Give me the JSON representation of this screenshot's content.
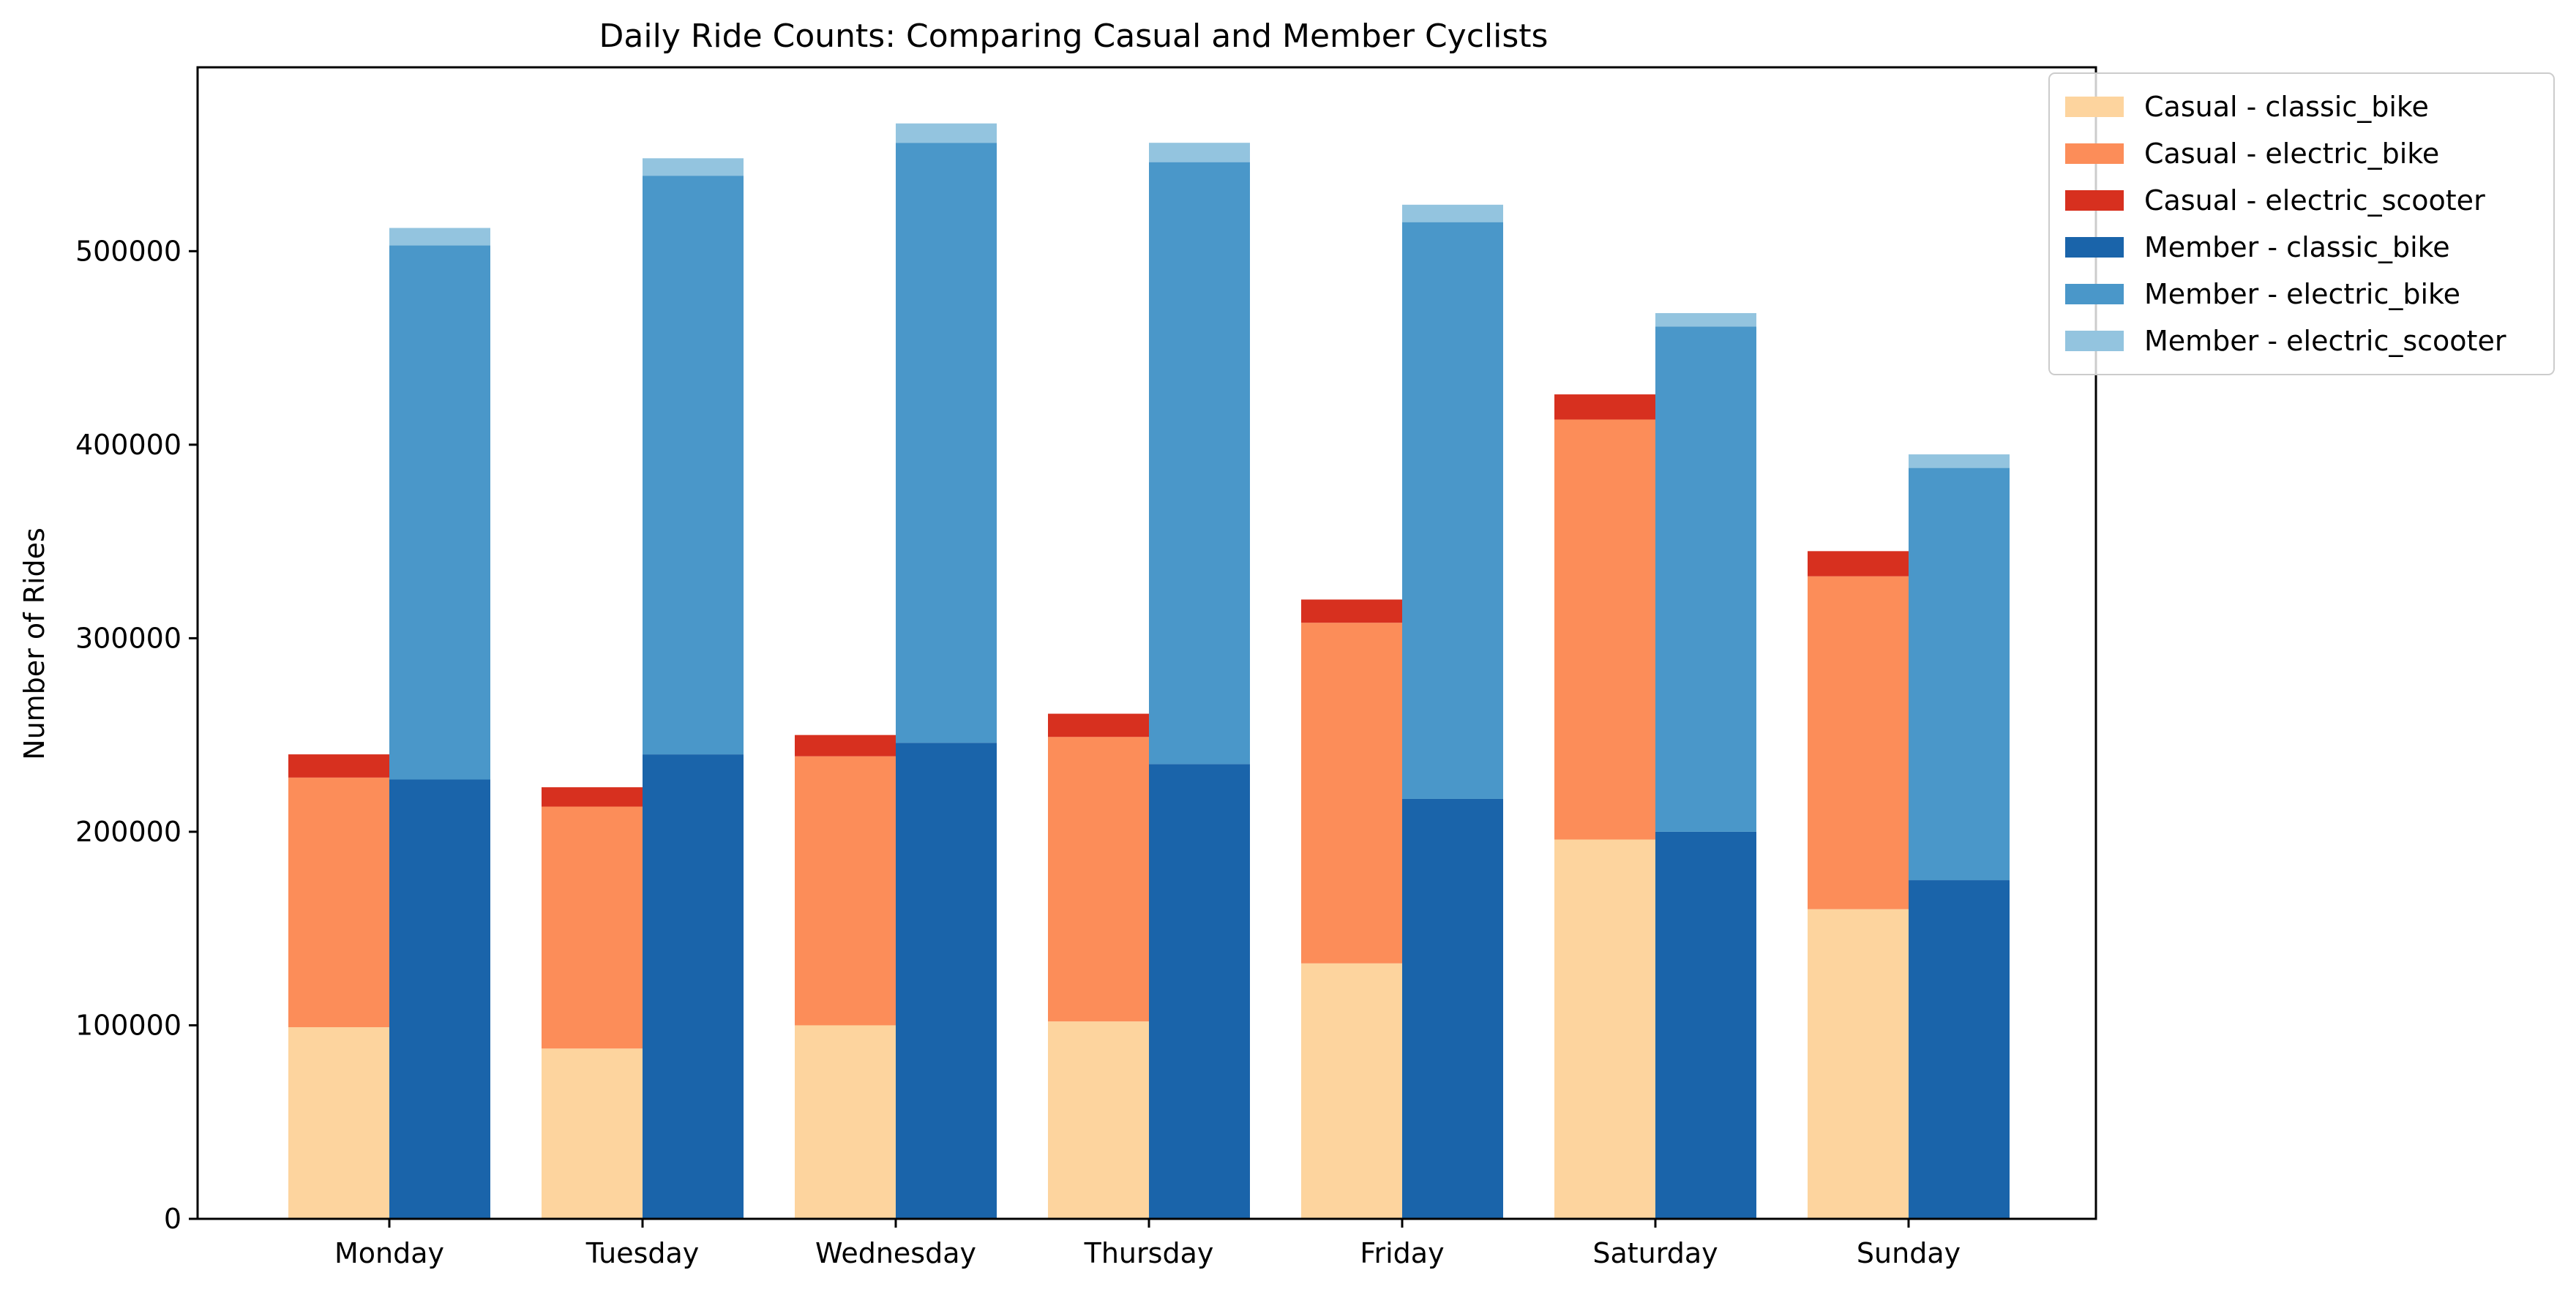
{
  "chart_data": {
    "type": "bar",
    "stacked": true,
    "grouped": true,
    "title": "Daily Ride Counts: Comparing Casual and Member Cyclists",
    "xlabel": "",
    "ylabel": "Number of Rides",
    "ylim": [
      0,
      595000
    ],
    "yticks": [
      0,
      100000,
      200000,
      300000,
      400000,
      500000
    ],
    "yticklabels": [
      "0",
      "100000",
      "200000",
      "300000",
      "400000",
      "500000"
    ],
    "grid": false,
    "legend_position": "top-right",
    "categories": [
      "Monday",
      "Tuesday",
      "Wednesday",
      "Thursday",
      "Friday",
      "Saturday",
      "Sunday"
    ],
    "groups": [
      {
        "name": "Casual",
        "series": [
          {
            "name": "Casual - classic_bike",
            "color": "#fdd49e",
            "values": [
              99000,
              88000,
              100000,
              102000,
              132000,
              196000,
              160000
            ]
          },
          {
            "name": "Casual - electric_bike",
            "color": "#fc8d59",
            "values": [
              129000,
              125000,
              139000,
              147000,
              176000,
              217000,
              172000
            ]
          },
          {
            "name": "Casual - electric_scooter",
            "color": "#d7301f",
            "values": [
              12000,
              10000,
              11000,
              12000,
              12000,
              13000,
              13000
            ]
          }
        ]
      },
      {
        "name": "Member",
        "series": [
          {
            "name": "Member - classic_bike",
            "color": "#1a64aa",
            "values": [
              227000,
              240000,
              246000,
              235000,
              217000,
              200000,
              175000
            ]
          },
          {
            "name": "Member - electric_bike",
            "color": "#4a97c9",
            "values": [
              276000,
              299000,
              310000,
              311000,
              298000,
              261000,
              213000
            ]
          },
          {
            "name": "Member - electric_scooter",
            "color": "#93c4df",
            "values": [
              9000,
              9000,
              10000,
              10000,
              9000,
              7000,
              7000
            ]
          }
        ]
      }
    ]
  }
}
